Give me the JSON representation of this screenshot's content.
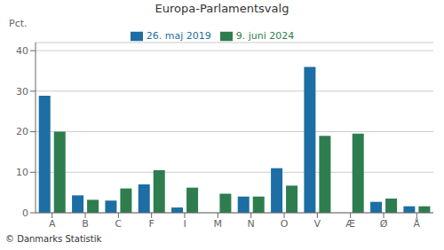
{
  "chart_data": {
    "type": "bar",
    "title": "Europa-Parlamentsvalg",
    "categories": [
      "A",
      "B",
      "C",
      "F",
      "I",
      "M",
      "N",
      "O",
      "V",
      "Æ",
      "Ø",
      "Å"
    ],
    "series": [
      {
        "name": "26. maj 2019",
        "color": "#1c6ea4",
        "values": [
          28.9,
          4.3,
          3.0,
          7.0,
          1.3,
          0.0,
          4.0,
          11.0,
          36.0,
          0.0,
          2.7,
          1.6
        ]
      },
      {
        "name": "9. juni 2024",
        "color": "#2e7d4f",
        "values": [
          20.0,
          3.2,
          6.0,
          10.5,
          6.2,
          4.7,
          4.0,
          6.7,
          19.0,
          19.5,
          3.5,
          1.6
        ]
      }
    ],
    "ylabel": "Pct.",
    "ylim": [
      0,
      42
    ],
    "yticks": [
      0,
      10,
      20,
      30,
      40
    ],
    "grid": true,
    "legend": "top",
    "annotations": [
      "© Danmarks Statistik"
    ]
  }
}
